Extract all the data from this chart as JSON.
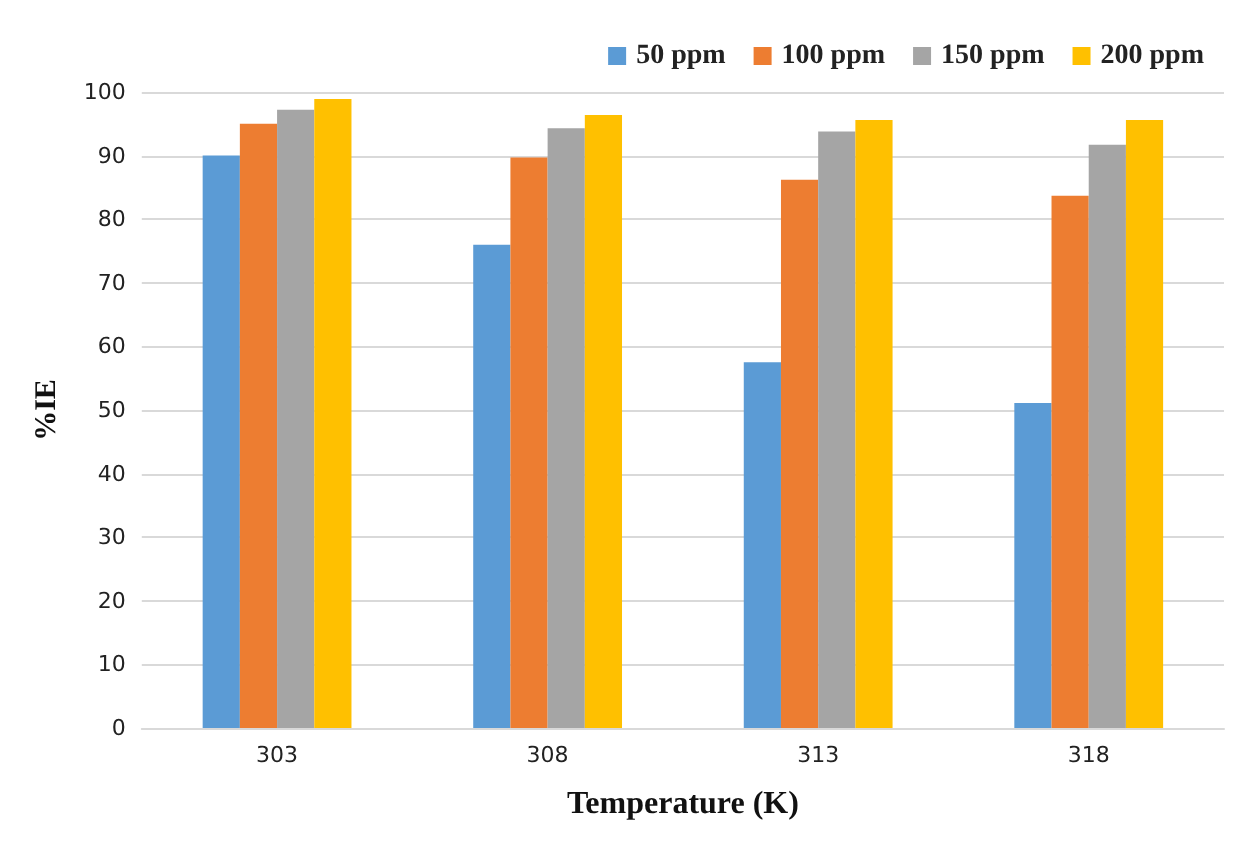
{
  "chart_data": {
    "type": "bar",
    "xlabel": "Temperature (K)",
    "ylabel": "%IE",
    "categories": [
      "303",
      "308",
      "313",
      "318"
    ],
    "series": [
      {
        "name": "50 ppm",
        "color": "#5b9bd5",
        "values": [
          90,
          76,
          57.5,
          51.1
        ]
      },
      {
        "name": "100 ppm",
        "color": "#ed7d31",
        "values": [
          95,
          89.7,
          86.2,
          83.7
        ]
      },
      {
        "name": "150 ppm",
        "color": "#a5a5a5",
        "values": [
          97.2,
          94.3,
          93.8,
          91.7
        ]
      },
      {
        "name": "200 ppm",
        "color": "#ffc000",
        "values": [
          98.9,
          96.4,
          95.6,
          95.6
        ]
      }
    ],
    "ylim": [
      0,
      100
    ],
    "yticks": [
      0,
      10,
      20,
      30,
      40,
      50,
      60,
      70,
      80,
      90,
      100
    ],
    "grid": "y",
    "legend": "top right"
  }
}
